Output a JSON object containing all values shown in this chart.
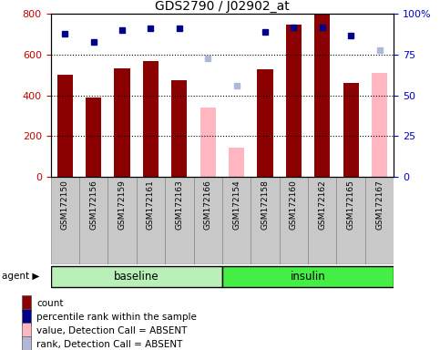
{
  "title": "GDS2790 / J02902_at",
  "samples": [
    "GSM172150",
    "GSM172156",
    "GSM172159",
    "GSM172161",
    "GSM172163",
    "GSM172166",
    "GSM172154",
    "GSM172158",
    "GSM172160",
    "GSM172162",
    "GSM172165",
    "GSM172167"
  ],
  "groups": [
    "baseline",
    "baseline",
    "baseline",
    "baseline",
    "baseline",
    "baseline",
    "insulin",
    "insulin",
    "insulin",
    "insulin",
    "insulin",
    "insulin"
  ],
  "bar_values": [
    500,
    390,
    535,
    570,
    475,
    null,
    null,
    530,
    750,
    795,
    460,
    null
  ],
  "bar_absent_values": [
    null,
    null,
    null,
    null,
    null,
    340,
    145,
    null,
    null,
    null,
    null,
    510
  ],
  "percentile_values": [
    88,
    83,
    90,
    91,
    91,
    null,
    null,
    89,
    92,
    92,
    87,
    null
  ],
  "rank_absent_values": [
    null,
    null,
    null,
    null,
    null,
    73,
    56,
    null,
    null,
    null,
    null,
    78
  ],
  "bar_color": "#8B0000",
  "bar_absent_color": "#FFB6C1",
  "dot_color": "#00008B",
  "dot_absent_color": "#B0B8D8",
  "ylim_left": [
    0,
    800
  ],
  "ylim_right": [
    0,
    100
  ],
  "yticks_left": [
    0,
    200,
    400,
    600,
    800
  ],
  "yticks_right": [
    0,
    25,
    50,
    75,
    100
  ],
  "ytick_labels_right": [
    "0",
    "25",
    "50",
    "75",
    "100%"
  ],
  "ylabel_left_color": "#CC0000",
  "ylabel_right_color": "#0000CC",
  "baseline_color": "#B8F0B8",
  "insulin_color": "#44EE44",
  "legend_items": [
    {
      "label": "count",
      "color": "#8B0000"
    },
    {
      "label": "percentile rank within the sample",
      "color": "#00008B"
    },
    {
      "label": "value, Detection Call = ABSENT",
      "color": "#FFB6C1"
    },
    {
      "label": "rank, Detection Call = ABSENT",
      "color": "#B0B8D8"
    }
  ],
  "bar_width": 0.55,
  "xlabels_facecolor": "#C8C8C8",
  "agent_label": "agent ▶"
}
